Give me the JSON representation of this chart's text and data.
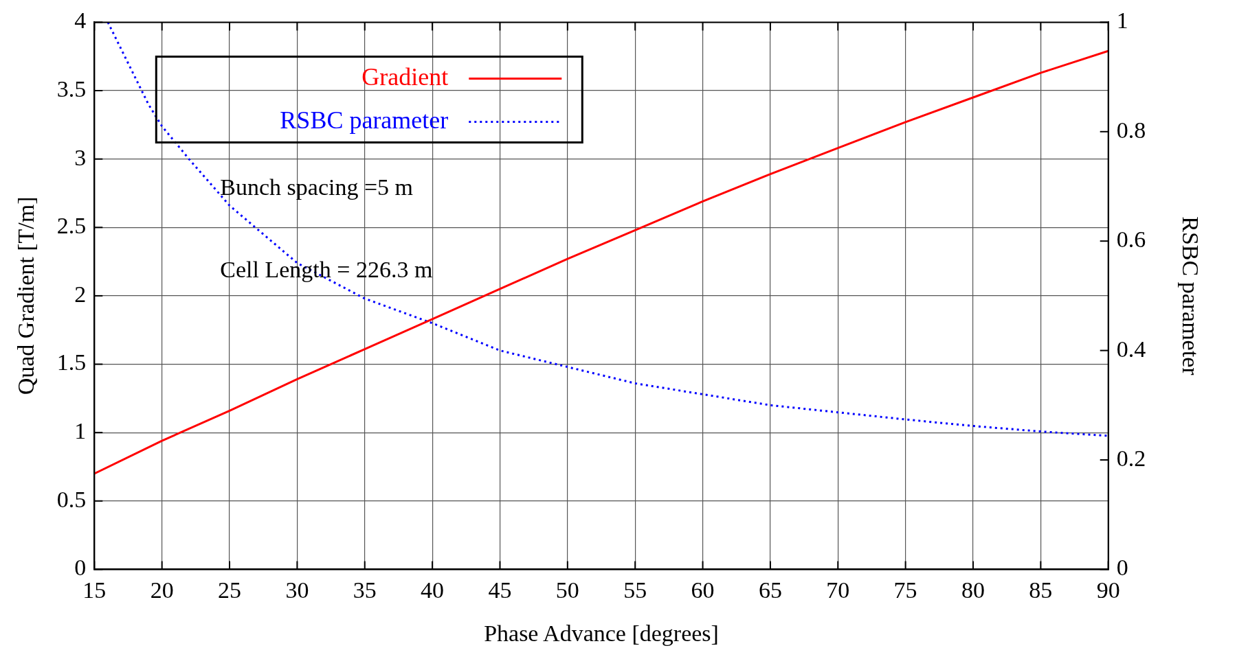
{
  "chart_data": {
    "type": "line",
    "xlabel": "Phase Advance [degrees]",
    "ylabel": "Quad Gradient [T/m]",
    "y2label": "RSBC parameter",
    "xlim": [
      15,
      90
    ],
    "xticks": [
      15,
      20,
      25,
      30,
      35,
      40,
      45,
      50,
      55,
      60,
      65,
      70,
      75,
      80,
      85,
      90
    ],
    "ylim": [
      0,
      4
    ],
    "yticks": [
      0,
      0.5,
      1,
      1.5,
      2,
      2.5,
      3,
      3.5,
      4
    ],
    "y2lim": [
      0,
      1
    ],
    "y2ticks": [
      0,
      0.2,
      0.4,
      0.6,
      0.8,
      1
    ],
    "grid": true,
    "legend": "top left",
    "marker": "none",
    "annotations": [
      "Bunch spacing =5 m",
      "Cell Length = 226.3 m"
    ],
    "series": [
      {
        "name": "Gradient",
        "color": "#ff0000",
        "line_style": "solid",
        "x": [
          15,
          20,
          25,
          30,
          35,
          40,
          45,
          50,
          55,
          60,
          65,
          70,
          75,
          80,
          85,
          90
        ],
        "values": [
          0.7,
          0.94,
          1.16,
          1.39,
          1.61,
          1.83,
          2.05,
          2.27,
          2.48,
          2.69,
          2.89,
          3.08,
          3.27,
          3.45,
          3.63,
          3.79
        ]
      },
      {
        "name": "RSBC parameter",
        "color": "#0000ff",
        "line_style": "dotted",
        "axis": "y2",
        "x": [
          16,
          17,
          18,
          19,
          20,
          22,
          25,
          30,
          35,
          40,
          45,
          50,
          55,
          60,
          65,
          70,
          75,
          80,
          85,
          90
        ],
        "values": [
          1.0,
          0.95,
          0.9,
          0.85,
          0.81,
          0.75,
          0.665,
          0.56,
          0.495,
          0.45,
          0.4,
          0.37,
          0.34,
          0.32,
          0.3,
          0.287,
          0.274,
          0.262,
          0.252,
          0.244
        ]
      }
    ]
  }
}
